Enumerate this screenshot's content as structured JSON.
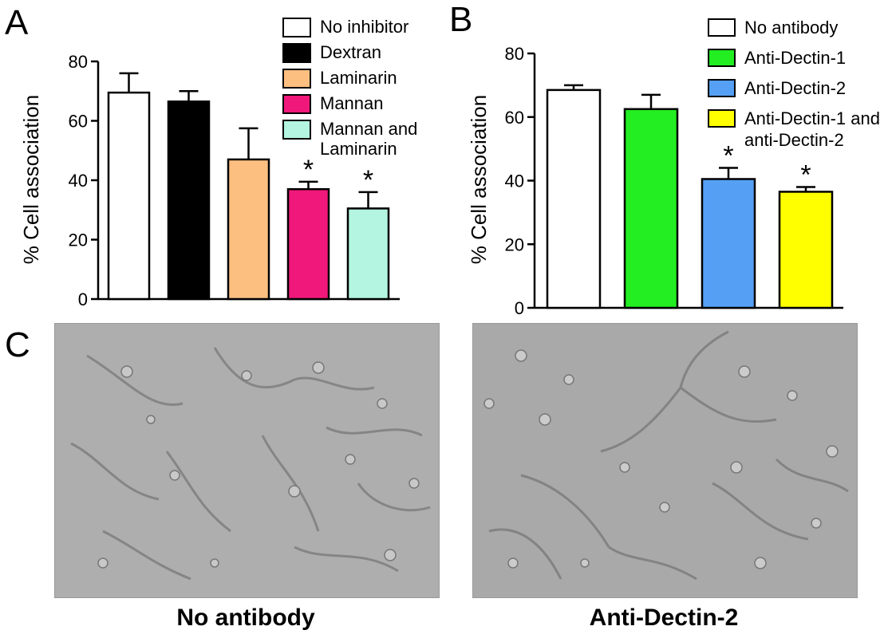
{
  "panels": {
    "a": {
      "letter": "A"
    },
    "b": {
      "letter": "B"
    },
    "c": {
      "letter": "C",
      "images": [
        {
          "caption": "No antibody",
          "description": "micrograph"
        },
        {
          "caption": "Anti-Dectin-2",
          "description": "micrograph"
        }
      ]
    }
  },
  "chart_data": [
    {
      "panel": "A",
      "type": "bar",
      "ylabel": "% Cell association",
      "ylim": [
        0,
        80
      ],
      "yticks": [
        0,
        20,
        40,
        60,
        80
      ],
      "legend_position": "top-right",
      "categories": [
        "No inhibitor",
        "Dextran",
        "Laminarin",
        "Mannan",
        "Mannan and Laminarin"
      ],
      "legend_labels": [
        [
          "No inhibitor"
        ],
        [
          "Dextran"
        ],
        [
          "Laminarin"
        ],
        [
          "Mannan"
        ],
        [
          "Mannan and",
          "Laminarin"
        ]
      ],
      "values": [
        69.5,
        66.5,
        47,
        37,
        30.5
      ],
      "errors": [
        6.5,
        3.5,
        10.5,
        2.5,
        5.5
      ],
      "colors": [
        "#ffffff",
        "#000000",
        "#fdbf80",
        "#f0187a",
        "#b3f5e0"
      ],
      "significance": [
        "",
        "",
        "",
        "*",
        "*"
      ]
    },
    {
      "panel": "B",
      "type": "bar",
      "ylabel": "% Cell association",
      "ylim": [
        0,
        80
      ],
      "yticks": [
        0,
        20,
        40,
        60,
        80
      ],
      "legend_position": "top-right",
      "categories": [
        "No antibody",
        "Anti-Dectin-1",
        "Anti-Dectin-2",
        "Anti-Dectin-1 and anti-Dectin-2"
      ],
      "legend_labels": [
        [
          "No antibody"
        ],
        [
          "Anti-Dectin-1"
        ],
        [
          "Anti-Dectin-2"
        ],
        [
          "Anti-Dectin-1 and",
          "anti-Dectin-2"
        ]
      ],
      "values": [
        68.5,
        62.5,
        40.5,
        36.5
      ],
      "errors": [
        1.5,
        4.5,
        3.5,
        1.5
      ],
      "colors": [
        "#ffffff",
        "#22ee22",
        "#55a0f5",
        "#ffff00"
      ],
      "significance": [
        "",
        "",
        "*",
        "*"
      ]
    }
  ]
}
